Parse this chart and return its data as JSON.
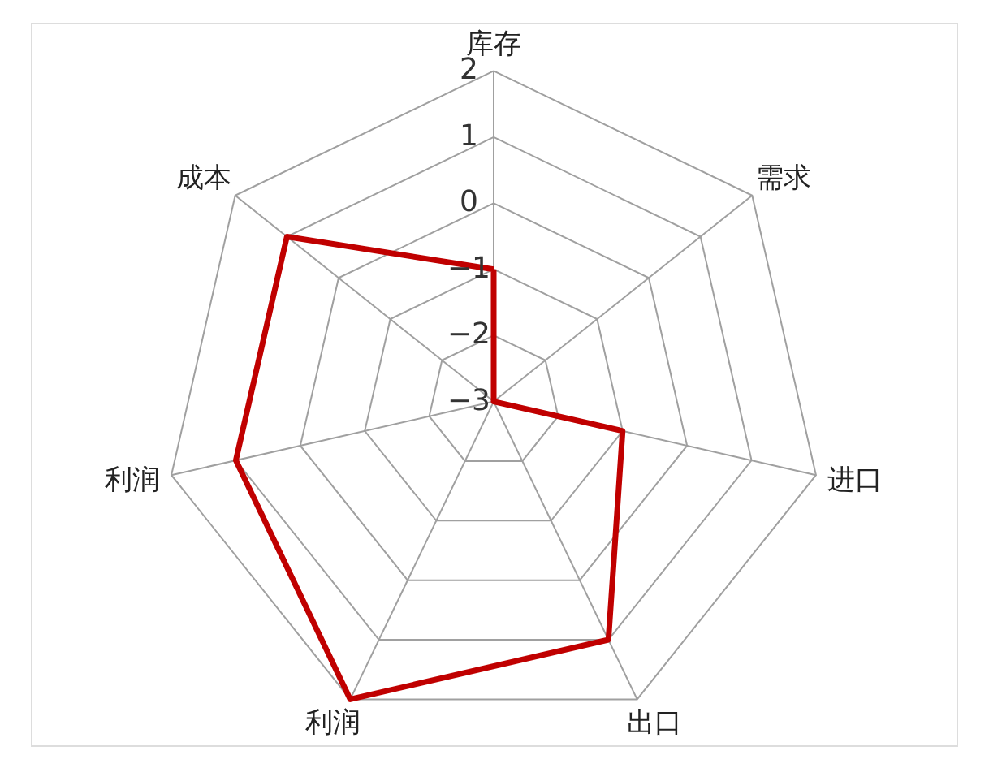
{
  "chart_data": {
    "type": "radar",
    "categories": [
      "库存",
      "需求",
      "进口",
      "出口",
      "利润",
      "利润",
      "成本"
    ],
    "series": [
      {
        "color": "#c00000",
        "values": [
          -1,
          -3,
          -1,
          1,
          2,
          1,
          1
        ]
      }
    ],
    "ylim": [
      -3,
      2
    ],
    "yticks": [
      {
        "value": -3,
        "label": "−3"
      },
      {
        "value": -2,
        "label": "−2"
      },
      {
        "value": -1,
        "label": "−1"
      },
      0,
      1,
      2
    ],
    "grid": true,
    "marker": "none",
    "line_style": "solid"
  }
}
